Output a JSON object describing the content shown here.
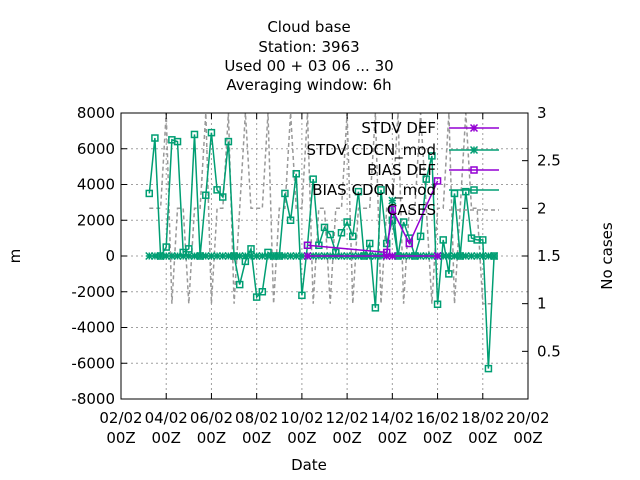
{
  "chart_data": {
    "type": "line",
    "title_lines": [
      "Cloud base",
      "Station:      3963",
      "Used  00 + 03 06 ... 30",
      "Averaging window:  6h"
    ],
    "xlabel": "Date",
    "ylabel": "m",
    "y2label": "No cases",
    "xlim": [
      0,
      18
    ],
    "ylim": [
      -8000,
      8000
    ],
    "y2lim": [
      0,
      3
    ],
    "x_ticks": [
      {
        "x": 0,
        "l1": "02/02",
        "l2": "00Z"
      },
      {
        "x": 2,
        "l1": "04/02",
        "l2": "00Z"
      },
      {
        "x": 4,
        "l1": "06/02",
        "l2": "00Z"
      },
      {
        "x": 6,
        "l1": "08/02",
        "l2": "00Z"
      },
      {
        "x": 8,
        "l1": "10/02",
        "l2": "00Z"
      },
      {
        "x": 10,
        "l1": "12/02",
        "l2": "00Z"
      },
      {
        "x": 12,
        "l1": "14/02",
        "l2": "00Z"
      },
      {
        "x": 14,
        "l1": "16/02",
        "l2": "00Z"
      },
      {
        "x": 16,
        "l1": "18/02",
        "l2": "00Z"
      },
      {
        "x": 18,
        "l1": "20/02",
        "l2": "00Z"
      }
    ],
    "y_ticks": [
      -8000,
      -6000,
      -4000,
      -2000,
      0,
      2000,
      4000,
      6000,
      8000
    ],
    "y2_ticks": [
      0.5,
      1,
      1.5,
      2,
      2.5,
      3
    ],
    "grid": true,
    "legend_position": "top-right",
    "series": [
      {
        "name": "STDV DEF",
        "axis": "y",
        "color": "#9400d3",
        "marker": "x",
        "x": [
          8.25,
          11.75,
          12.0,
          14.0
        ],
        "y": [
          0,
          0,
          0,
          0
        ]
      },
      {
        "name": "STDV CDCN_mod",
        "axis": "y",
        "color": "#009e73",
        "marker": "x",
        "x": [
          1.25,
          1.5,
          1.75,
          2.0,
          2.25,
          2.5,
          2.75,
          3.0,
          3.25,
          3.5,
          3.75,
          4.0,
          4.25,
          4.5,
          4.75,
          5.0,
          5.25,
          5.5,
          5.75,
          6.0,
          6.25,
          6.5,
          6.75,
          7.0,
          7.25,
          7.5,
          7.75,
          8.0,
          8.25,
          8.5,
          8.75,
          9.0,
          9.25,
          9.5,
          9.75,
          10.0,
          10.25,
          10.5,
          10.75,
          11.0,
          11.25,
          11.5,
          11.75,
          12.0,
          12.25,
          12.5,
          12.75,
          13.0,
          13.25,
          13.5,
          13.75,
          14.0,
          14.25,
          14.5,
          14.75,
          15.0,
          15.25,
          15.5,
          15.75,
          16.0,
          16.25,
          16.5
        ],
        "y": [
          0,
          0,
          0,
          0,
          0,
          0,
          0,
          0,
          0,
          0,
          0,
          0,
          0,
          0,
          0,
          0,
          0,
          0,
          0,
          0,
          0,
          0,
          0,
          0,
          0,
          0,
          0,
          0,
          0,
          0,
          0,
          0,
          0,
          0,
          0,
          0,
          0,
          0,
          0,
          0,
          0,
          0,
          0,
          3100,
          0,
          0,
          0,
          0,
          0,
          0,
          0,
          0,
          0,
          0,
          0,
          0,
          0,
          0,
          0,
          0,
          0,
          0
        ]
      },
      {
        "name": "BIAS DEF",
        "axis": "y",
        "color": "#9400d3",
        "marker": "square",
        "x": [
          8.25,
          11.75,
          12.0,
          12.75,
          14.0
        ],
        "y": [
          600,
          200,
          2600,
          700,
          4200
        ]
      },
      {
        "name": "BIAS CDCN_mod",
        "axis": "y",
        "color": "#009e73",
        "marker": "square",
        "x": [
          1.25,
          1.5,
          1.75,
          2.0,
          2.25,
          2.5,
          2.75,
          3.0,
          3.25,
          3.5,
          3.75,
          4.0,
          4.25,
          4.5,
          4.75,
          5.0,
          5.25,
          5.5,
          5.75,
          6.0,
          6.25,
          6.5,
          6.75,
          7.0,
          7.25,
          7.5,
          7.75,
          8.0,
          8.25,
          8.5,
          8.75,
          9.0,
          9.25,
          9.5,
          9.75,
          10.0,
          10.25,
          10.5,
          10.75,
          11.0,
          11.25,
          11.5,
          11.75,
          12.0,
          12.25,
          12.5,
          12.75,
          13.0,
          13.25,
          13.5,
          13.75,
          14.0,
          14.25,
          14.5,
          14.75,
          15.0,
          15.25,
          15.5,
          15.75,
          16.0,
          16.25,
          16.5
        ],
        "y": [
          3500,
          6600,
          0,
          500,
          6500,
          6400,
          200,
          400,
          6800,
          0,
          3400,
          6900,
          3700,
          3300,
          6400,
          0,
          -1600,
          -300,
          400,
          -2300,
          -2000,
          200,
          0,
          0,
          3500,
          2000,
          4600,
          -2200,
          600,
          4300,
          600,
          1600,
          1200,
          200,
          1300,
          1900,
          1100,
          3600,
          0,
          700,
          -2900,
          3700,
          700,
          2000,
          0,
          1900,
          1000,
          0,
          1100,
          4300,
          5600,
          -2700,
          900,
          -1000,
          3500,
          0,
          3600,
          1000,
          900,
          900,
          -6300,
          0
        ]
      },
      {
        "name": "CASES",
        "axis": "y2",
        "color": "#999999",
        "marker": "none",
        "dash": "4,3",
        "x": [
          1.25,
          1.5,
          1.75,
          2.0,
          2.25,
          2.5,
          2.75,
          3.0,
          3.25,
          3.5,
          3.75,
          4.0,
          4.25,
          4.5,
          4.75,
          5.0,
          5.25,
          5.5,
          5.75,
          6.0,
          6.25,
          6.5,
          6.75,
          7.0,
          7.25,
          7.5,
          7.75,
          8.0,
          8.25,
          8.5,
          8.75,
          9.0,
          9.25,
          9.5,
          9.75,
          10.0,
          10.25,
          10.5,
          10.75,
          11.0,
          11.25,
          11.5,
          11.75,
          12.0,
          12.25,
          12.5,
          12.75,
          13.0,
          13.25,
          13.5,
          13.75,
          14.0,
          14.25,
          14.5,
          14.75,
          15.0,
          15.25,
          15.5,
          15.75,
          16.0,
          16.25,
          16.5
        ],
        "y": [
          2,
          2,
          2,
          3,
          1,
          2,
          2,
          1,
          2,
          2,
          3,
          1,
          2,
          2,
          3,
          1,
          2,
          3,
          2,
          2,
          2,
          3,
          1,
          2,
          2,
          3,
          2,
          2,
          3,
          1,
          2,
          2,
          1,
          2,
          2,
          3,
          1,
          2,
          2,
          2,
          3,
          1,
          2,
          2,
          3,
          1,
          2,
          2,
          3,
          2,
          1,
          2,
          2,
          3,
          1,
          2,
          3,
          2,
          2,
          1,
          1,
          1
        ]
      }
    ]
  }
}
